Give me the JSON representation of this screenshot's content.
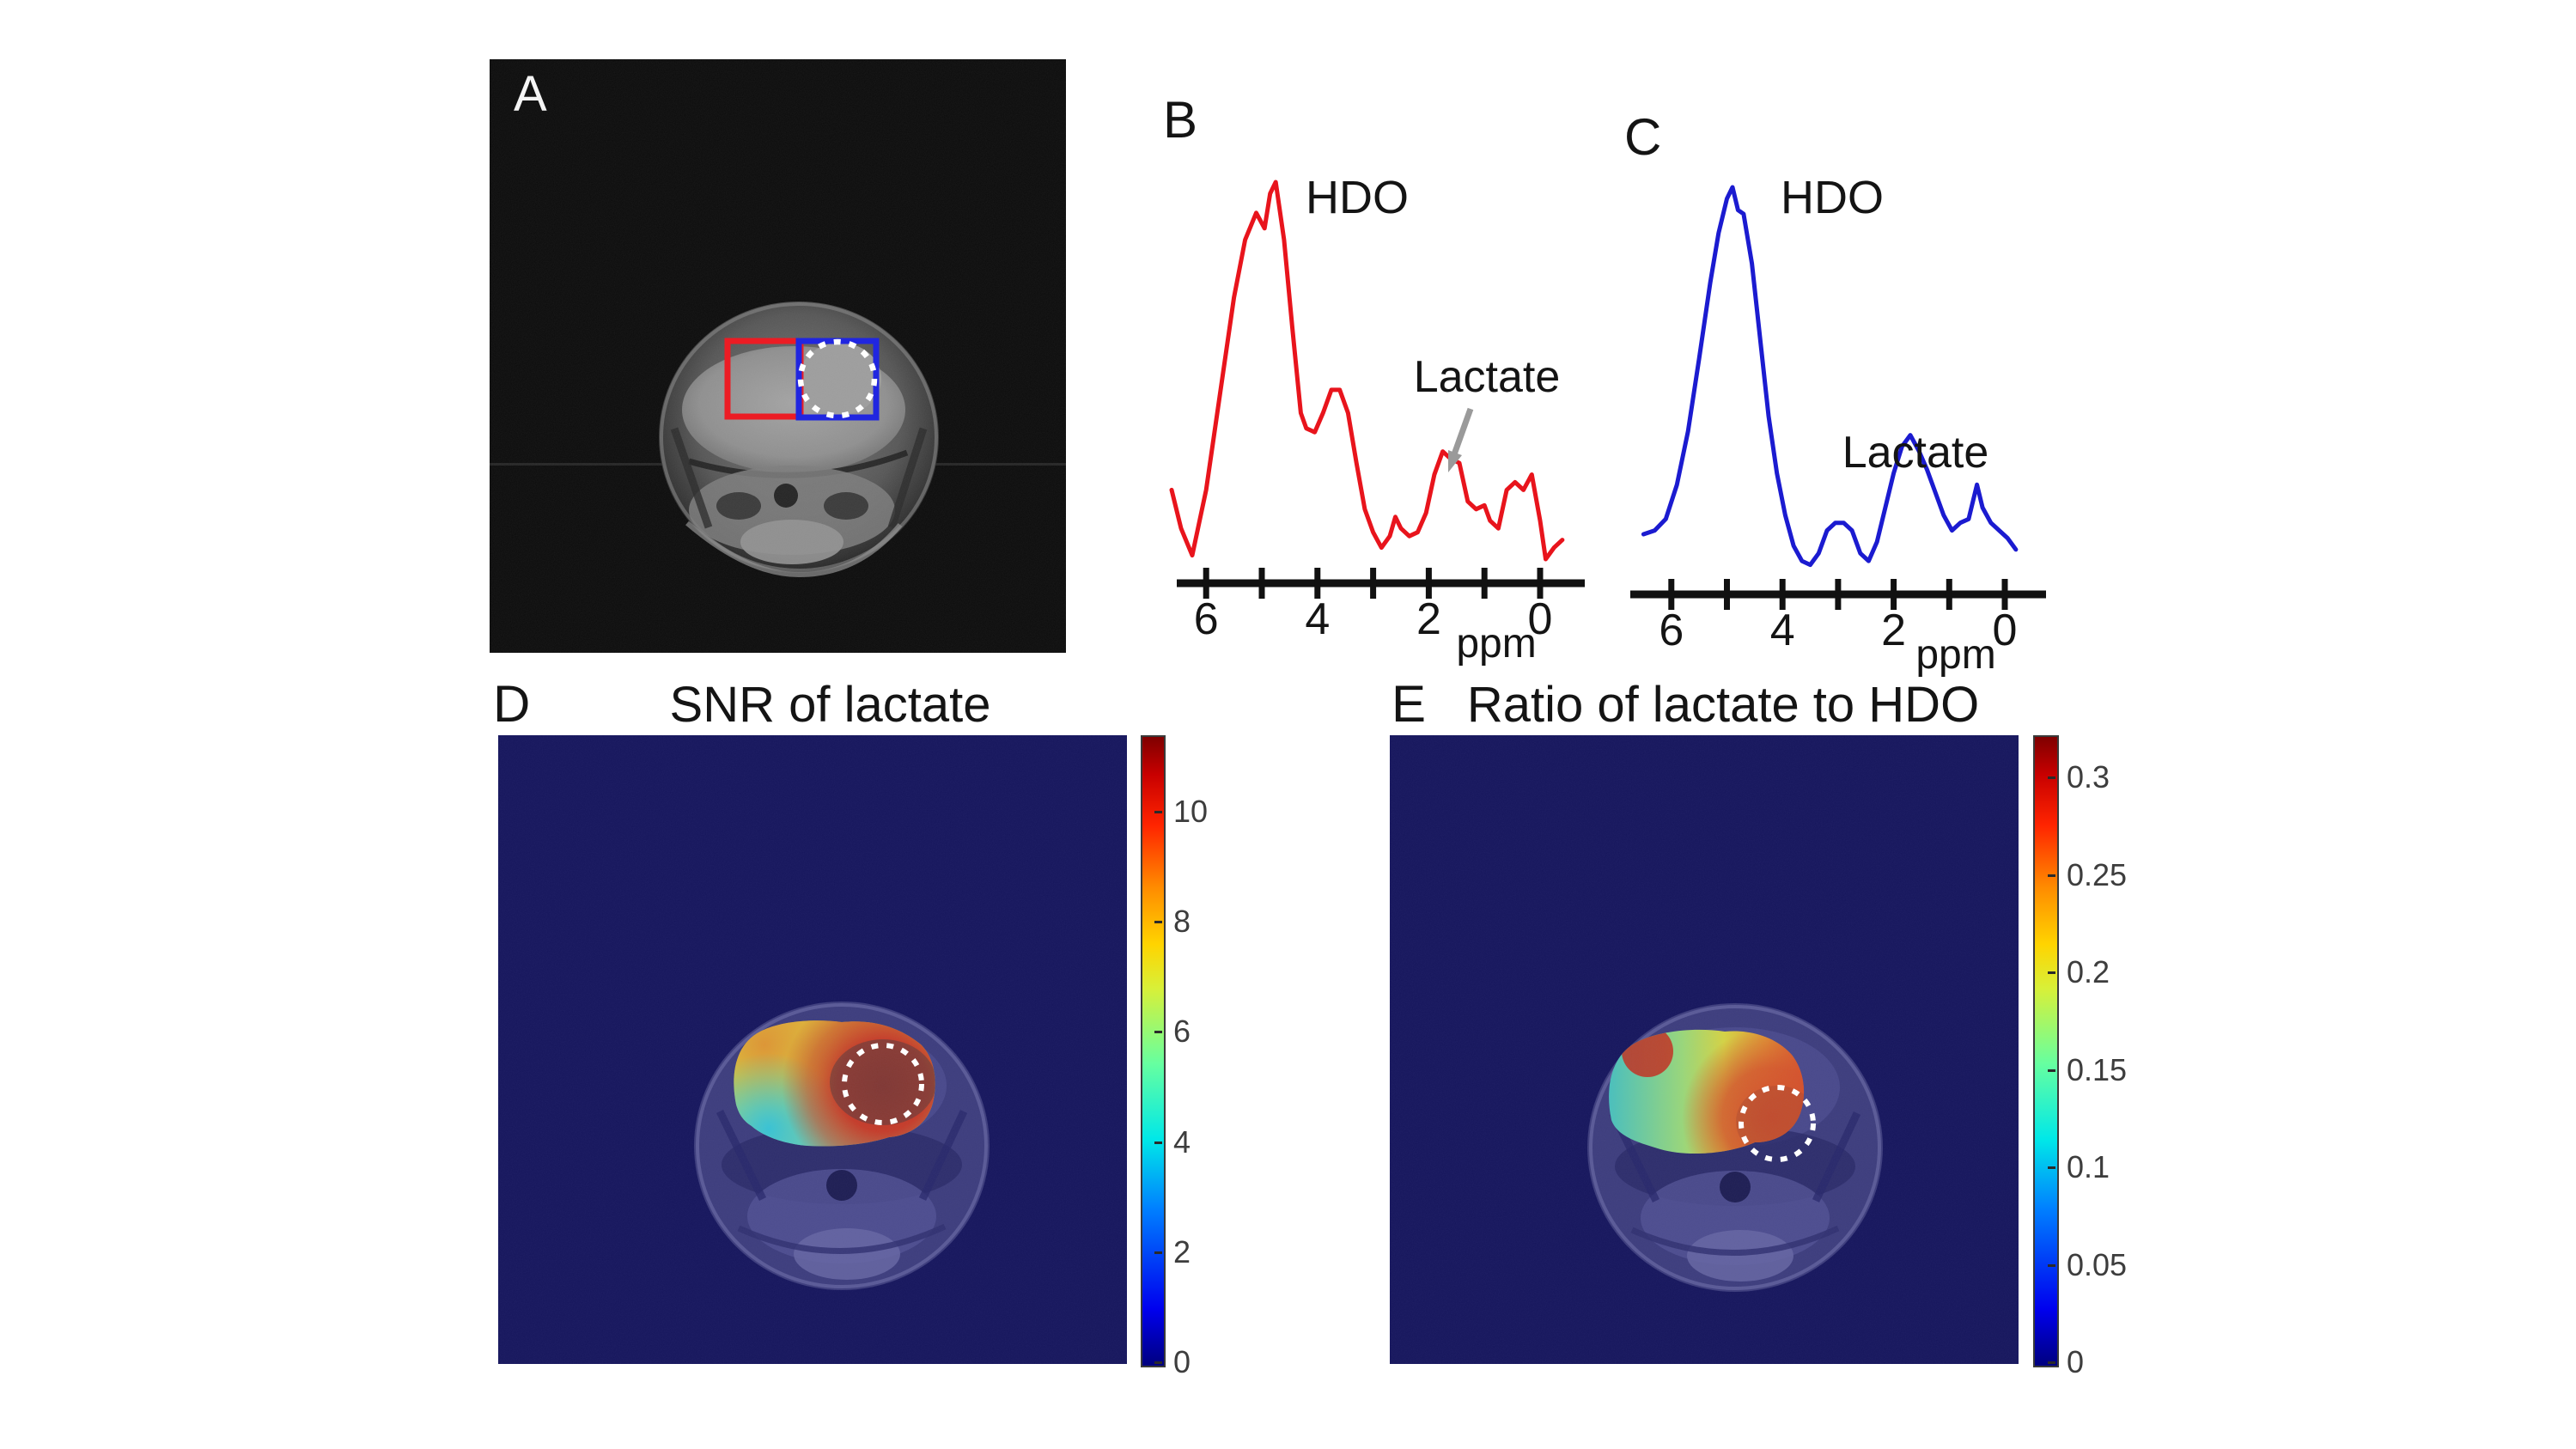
{
  "figure": {
    "background": "#ffffff",
    "panels": {
      "a": {
        "label": "A"
      },
      "b": {
        "label": "B",
        "hdo": "HDO",
        "lactate": "Lactate",
        "xlabel": "ppm",
        "x_tick_labels": [
          "6",
          "4",
          "2",
          "0"
        ]
      },
      "c": {
        "label": "C",
        "hdo": "HDO",
        "lactate": "Lactate",
        "xlabel": "ppm",
        "x_tick_labels": [
          "6",
          "4",
          "2",
          "0"
        ]
      },
      "d": {
        "label": "D",
        "title": "SNR of lactate",
        "colorbar_tick_labels": [
          "10",
          "8",
          "6",
          "4",
          "2",
          "0"
        ]
      },
      "e": {
        "label": "E",
        "title": "Ratio of lactate to HDO",
        "colorbar_tick_labels": [
          "0.3",
          "0.25",
          "0.2",
          "0.15",
          "0.1",
          "0.05",
          "0"
        ]
      }
    },
    "colors": {
      "spectrum_b": "#e8141c",
      "spectrum_c": "#1b1bd0",
      "roi_red": "#ec1c24",
      "roi_blue": "#2026e0",
      "map_background": "#16165c",
      "annotation_arrow_gray": "#9a9a9a",
      "dotted_circle_white": "#ffffff"
    }
  },
  "chart_data": [
    {
      "type": "line",
      "id": "spectrum_B",
      "color": "#e8141c",
      "xlabel": "ppm",
      "x_axis_reversed": true,
      "x_range": [
        6.7,
        -0.5
      ],
      "x_ticks": [
        6,
        5,
        4,
        3,
        2,
        1,
        0
      ],
      "x_labeled_ticks": [
        6,
        4,
        2,
        0
      ],
      "annotations": [
        {
          "text": "HDO",
          "ppm": 4.8
        },
        {
          "text": "Lactate",
          "ppm": 1.7,
          "arrow": true,
          "arrow_color": "#9a9a9a"
        }
      ],
      "points_ppm_intensity": [
        [
          6.62,
          0.2
        ],
        [
          6.45,
          0.1
        ],
        [
          6.25,
          0.03
        ],
        [
          6.0,
          0.2
        ],
        [
          5.75,
          0.45
        ],
        [
          5.5,
          0.7
        ],
        [
          5.3,
          0.85
        ],
        [
          5.1,
          0.92
        ],
        [
          4.95,
          0.88
        ],
        [
          4.85,
          0.97
        ],
        [
          4.75,
          1.0
        ],
        [
          4.6,
          0.85
        ],
        [
          4.45,
          0.62
        ],
        [
          4.3,
          0.4
        ],
        [
          4.2,
          0.36
        ],
        [
          4.05,
          0.35
        ],
        [
          3.9,
          0.4
        ],
        [
          3.75,
          0.46
        ],
        [
          3.6,
          0.46
        ],
        [
          3.45,
          0.4
        ],
        [
          3.3,
          0.27
        ],
        [
          3.15,
          0.15
        ],
        [
          3.0,
          0.09
        ],
        [
          2.85,
          0.05
        ],
        [
          2.7,
          0.08
        ],
        [
          2.6,
          0.13
        ],
        [
          2.5,
          0.1
        ],
        [
          2.35,
          0.08
        ],
        [
          2.2,
          0.09
        ],
        [
          2.05,
          0.14
        ],
        [
          1.9,
          0.24
        ],
        [
          1.75,
          0.3
        ],
        [
          1.6,
          0.28
        ],
        [
          1.45,
          0.27
        ],
        [
          1.3,
          0.17
        ],
        [
          1.15,
          0.15
        ],
        [
          1.0,
          0.16
        ],
        [
          0.9,
          0.12
        ],
        [
          0.75,
          0.1
        ],
        [
          0.6,
          0.2
        ],
        [
          0.45,
          0.22
        ],
        [
          0.3,
          0.2
        ],
        [
          0.15,
          0.24
        ],
        [
          0.0,
          0.12
        ],
        [
          -0.1,
          0.02
        ],
        [
          -0.25,
          0.05
        ],
        [
          -0.4,
          0.07
        ]
      ]
    },
    {
      "type": "line",
      "id": "spectrum_C",
      "color": "#1b1bd0",
      "xlabel": "ppm",
      "x_axis_reversed": true,
      "x_range": [
        6.6,
        -0.4
      ],
      "x_ticks": [
        6,
        5,
        4,
        3,
        2,
        1,
        0
      ],
      "x_labeled_ticks": [
        6,
        4,
        2,
        0
      ],
      "annotations": [
        {
          "text": "HDO",
          "ppm": 4.8
        },
        {
          "text": "Lactate",
          "ppm": 1.7,
          "arrow": false
        }
      ],
      "points_ppm_intensity": [
        [
          6.5,
          0.09
        ],
        [
          6.3,
          0.1
        ],
        [
          6.1,
          0.13
        ],
        [
          5.9,
          0.22
        ],
        [
          5.7,
          0.36
        ],
        [
          5.5,
          0.55
        ],
        [
          5.3,
          0.75
        ],
        [
          5.15,
          0.88
        ],
        [
          5.0,
          0.97
        ],
        [
          4.9,
          1.0
        ],
        [
          4.8,
          0.94
        ],
        [
          4.7,
          0.93
        ],
        [
          4.55,
          0.8
        ],
        [
          4.4,
          0.6
        ],
        [
          4.25,
          0.4
        ],
        [
          4.1,
          0.25
        ],
        [
          3.95,
          0.14
        ],
        [
          3.8,
          0.06
        ],
        [
          3.65,
          0.02
        ],
        [
          3.5,
          0.01
        ],
        [
          3.35,
          0.04
        ],
        [
          3.2,
          0.1
        ],
        [
          3.05,
          0.12
        ],
        [
          2.9,
          0.12
        ],
        [
          2.75,
          0.1
        ],
        [
          2.6,
          0.04
        ],
        [
          2.45,
          0.02
        ],
        [
          2.3,
          0.07
        ],
        [
          2.15,
          0.16
        ],
        [
          2.0,
          0.25
        ],
        [
          1.85,
          0.32
        ],
        [
          1.7,
          0.35
        ],
        [
          1.55,
          0.31
        ],
        [
          1.4,
          0.26
        ],
        [
          1.25,
          0.2
        ],
        [
          1.1,
          0.14
        ],
        [
          0.95,
          0.1
        ],
        [
          0.8,
          0.12
        ],
        [
          0.65,
          0.13
        ],
        [
          0.5,
          0.22
        ],
        [
          0.4,
          0.16
        ],
        [
          0.25,
          0.12
        ],
        [
          0.1,
          0.1
        ],
        [
          -0.05,
          0.08
        ],
        [
          -0.2,
          0.05
        ]
      ]
    },
    {
      "type": "heatmap",
      "id": "snr_map",
      "title": "SNR of lactate",
      "colormap": "jet",
      "colorbar_ticks": [
        10,
        8,
        6,
        4,
        2,
        0
      ],
      "colorbar_range": [
        0,
        11.4
      ],
      "overlay_summary": "Lactate SNR overlay on axial mouse-head MRI: red/dark-red (SNR ~8-11) around dotted tumor circle, yellow-orange superior-left brain, cyan-green (~4-6) inferior-left margin"
    },
    {
      "type": "heatmap",
      "id": "ratio_map",
      "title": "Ratio of lactate to HDO",
      "colormap": "jet",
      "colorbar_ticks": [
        0.3,
        0.25,
        0.2,
        0.15,
        0.1,
        0.05,
        0
      ],
      "colorbar_range": [
        0,
        0.32
      ],
      "overlay_summary": "Lactate/HDO ratio overlay: red (~0.25-0.3) at dotted tumor circle and right margin plus small left spot, yellow (~0.2) mid-brain, cyan-teal (~0.1-0.15) contralateral left brain"
    }
  ]
}
